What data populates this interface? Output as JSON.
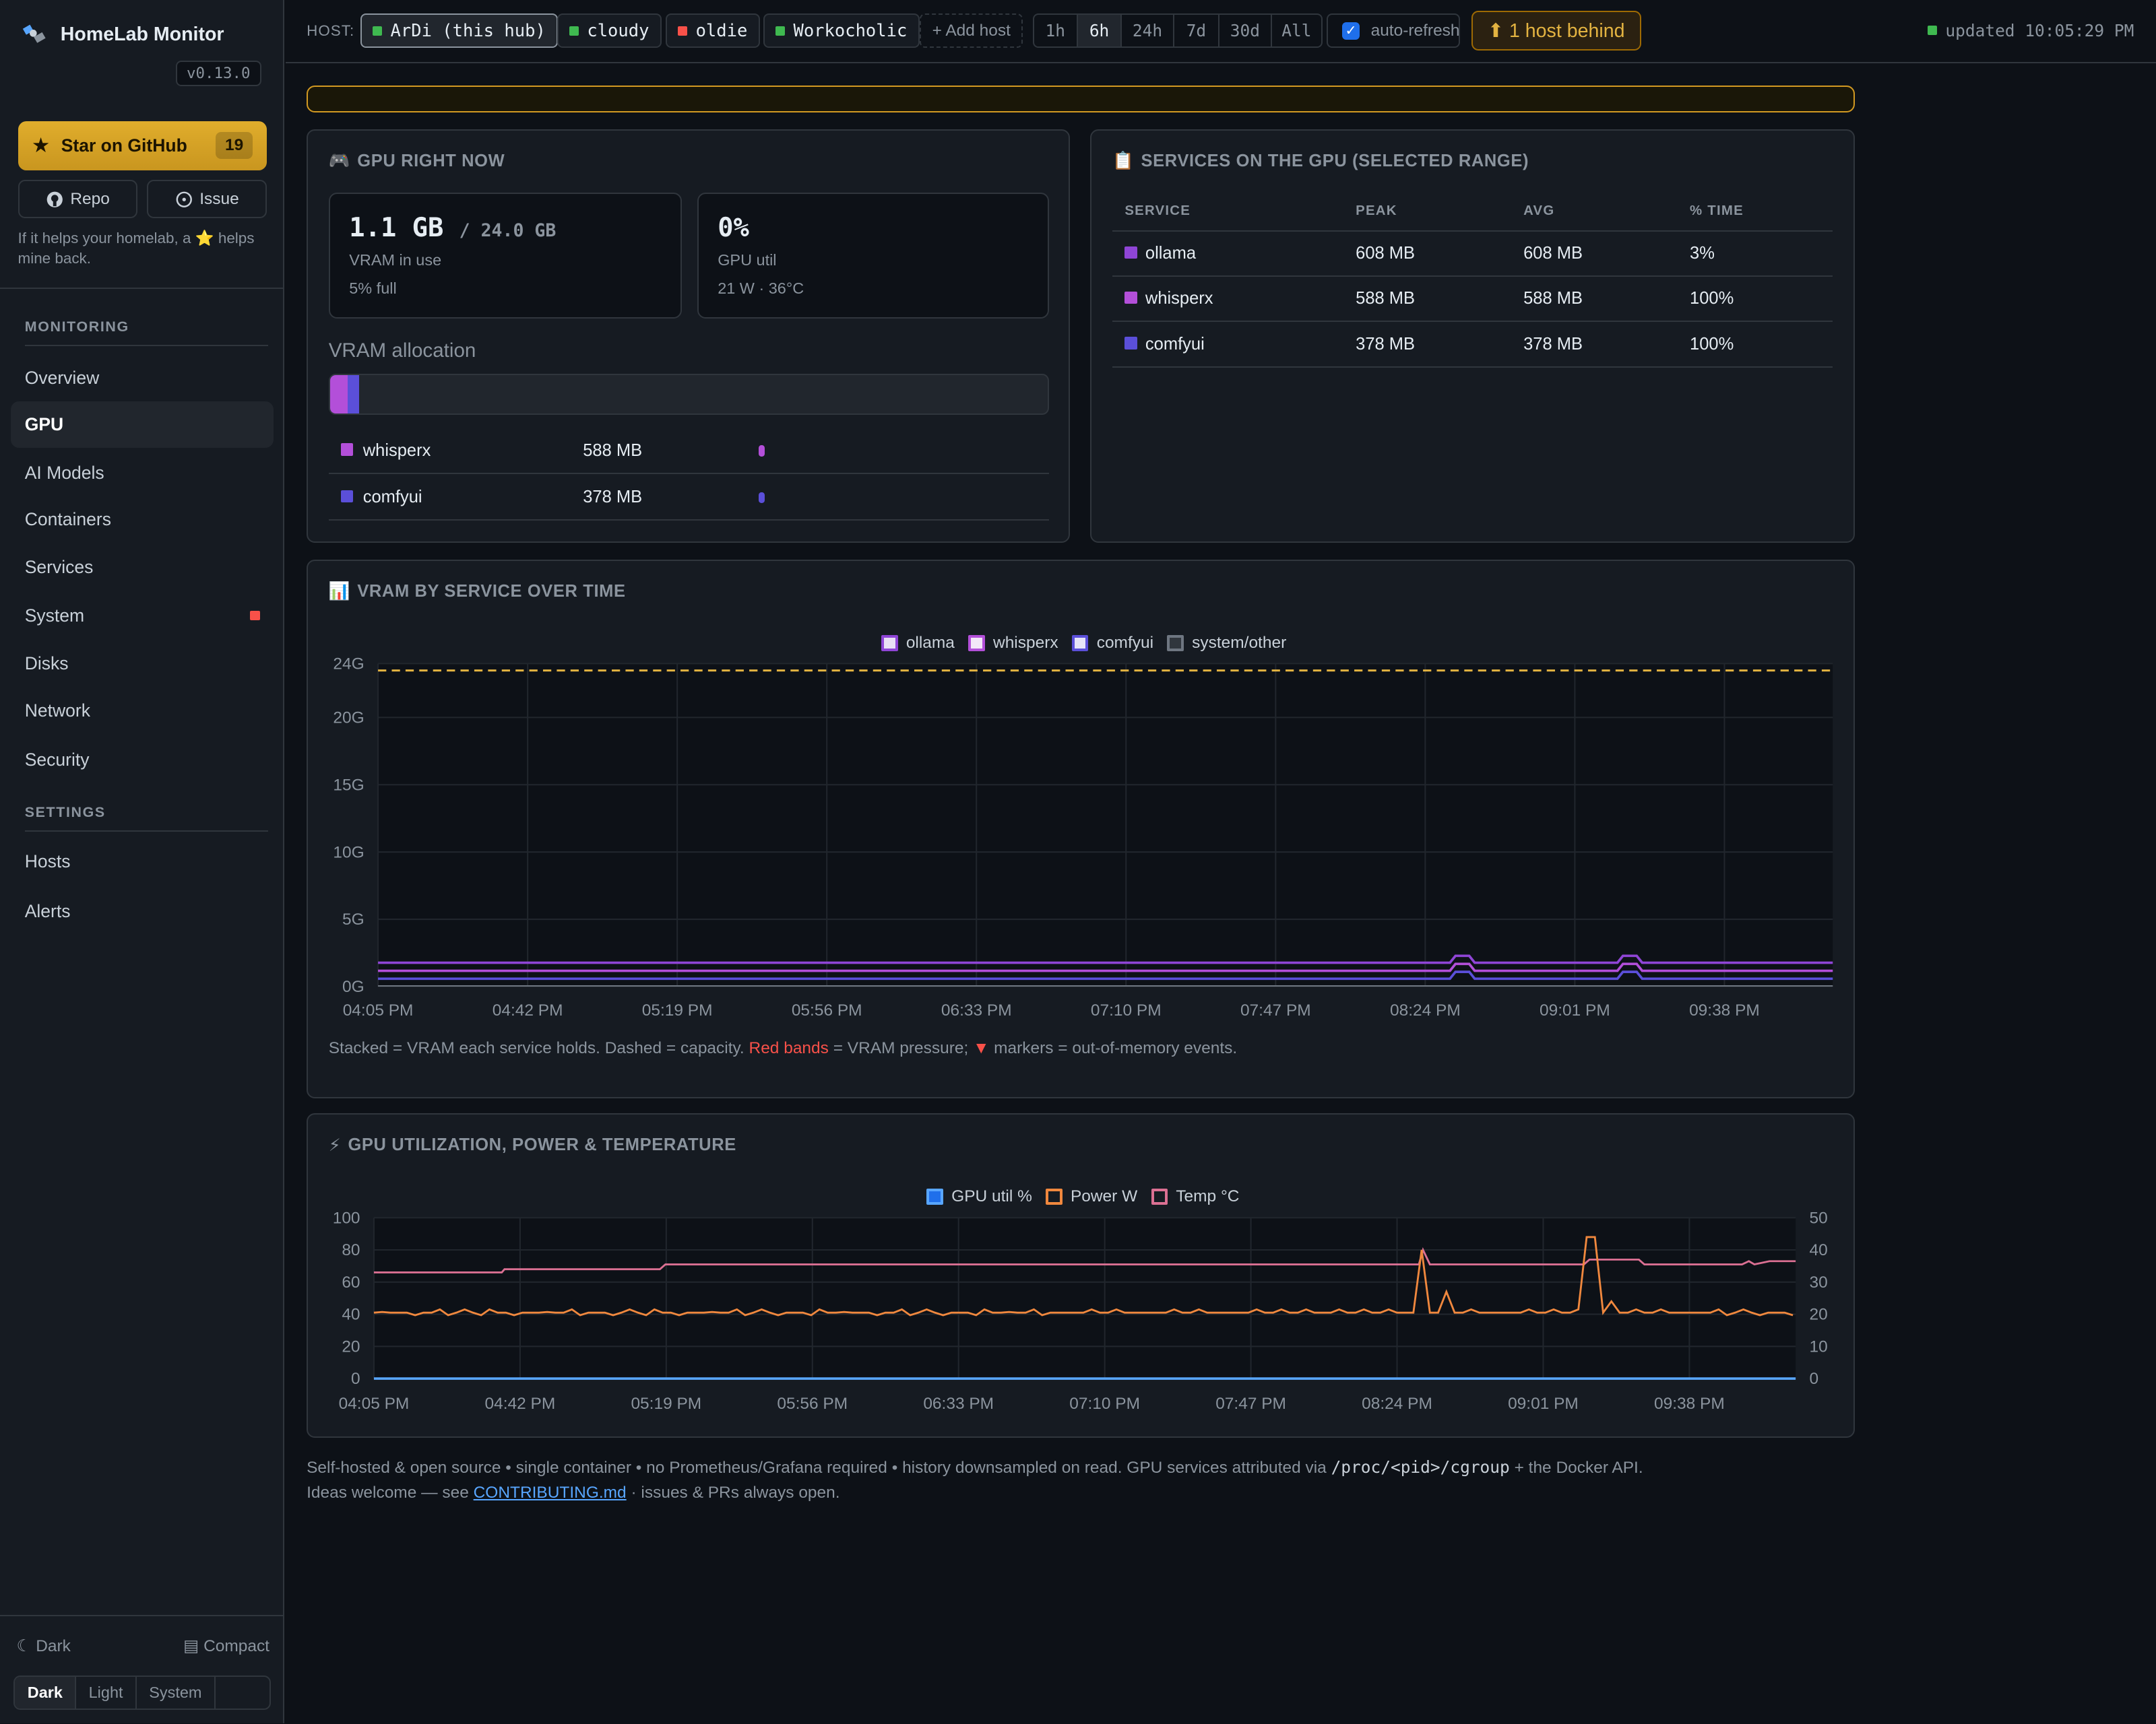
{
  "sidebar": {
    "brand": "HomeLab Monitor",
    "version": "v0.13.0",
    "star_label": "Star on GitHub",
    "star_count": "19",
    "repo_label": "Repo",
    "issue_label": "Issue",
    "help_text": "If it helps your homelab, a ⭐ helps mine back.",
    "sections": {
      "monitoring": "MONITORING",
      "settings": "SETTINGS"
    },
    "monitoring_items": [
      "Overview",
      "GPU",
      "AI Models",
      "Containers",
      "Services",
      "System",
      "Disks",
      "Network",
      "Security"
    ],
    "settings_items": [
      "Hosts",
      "Alerts"
    ],
    "theme_label": "Dark",
    "compact_label": "Compact",
    "theme_options": [
      "Dark",
      "Light",
      "System"
    ]
  },
  "topbar": {
    "host_label": "HOST:",
    "hosts": [
      {
        "name": "ArDi (this hub)",
        "status": "#3fb950"
      },
      {
        "name": "cloudy",
        "status": "#3fb950"
      },
      {
        "name": "oldie",
        "status": "#f85149"
      },
      {
        "name": "Workocholic",
        "status": "#3fb950"
      }
    ],
    "add_host": "+ Add host",
    "ranges": [
      "1h",
      "6h",
      "24h",
      "7d",
      "30d",
      "All"
    ],
    "selected_range": "6h",
    "auto_refresh": "auto-refresh",
    "behind": "⬆ 1 host behind",
    "updated": "updated 10:05:29 PM"
  },
  "gpu_now": {
    "title": "GPU RIGHT NOW",
    "vram_used": "1.1 GB",
    "vram_total": "/ 24.0 GB",
    "vram_label": "VRAM in use",
    "vram_pct": "5% full",
    "util": "0%",
    "util_label": "GPU util",
    "util_sub": "21 W · 36°C",
    "allocation_title": "VRAM allocation",
    "allocation": [
      {
        "name": "whisperx",
        "value": "588 MB",
        "color": "#b34fd9"
      },
      {
        "name": "comfyui",
        "value": "378 MB",
        "color": "#5b4fd9"
      }
    ]
  },
  "services": {
    "title": "SERVICES ON THE GPU (SELECTED RANGE)",
    "headers": [
      "SERVICE",
      "PEAK",
      "AVG",
      "% TIME"
    ],
    "rows": [
      {
        "name": "ollama",
        "peak": "608 MB",
        "avg": "608 MB",
        "time": "3%",
        "color": "#8f45d6"
      },
      {
        "name": "whisperx",
        "peak": "588 MB",
        "avg": "588 MB",
        "time": "100%",
        "color": "#b34fd9"
      },
      {
        "name": "comfyui",
        "peak": "378 MB",
        "avg": "378 MB",
        "time": "100%",
        "color": "#5b4fd9"
      }
    ]
  },
  "vram_chart": {
    "title": "VRAM BY SERVICE OVER TIME",
    "caption_a": "Stacked = VRAM each service holds. Dashed = capacity.",
    "caption_red": "Red bands",
    "caption_b": "= VRAM pressure;",
    "caption_marker": "▼",
    "caption_c": "markers = out-of-memory events."
  },
  "util_chart": {
    "title": "GPU UTILIZATION, POWER & TEMPERATURE"
  },
  "footer": {
    "line1_a": "Self-hosted & open source • single container • no Prometheus/Grafana required • history downsampled on read. GPU services attributed via",
    "line1_code": "/proc/<pid>/cgroup",
    "line1_b": "+ the Docker API.",
    "line2_a": "Ideas welcome — see",
    "line2_link": "CONTRIBUTING.md",
    "line2_b": "· issues & PRs always open."
  },
  "chart_data": [
    {
      "type": "area",
      "x": [
        "04:05 PM",
        "04:42 PM",
        "05:19 PM",
        "05:56 PM",
        "06:33 PM",
        "07:10 PM",
        "07:47 PM",
        "08:24 PM",
        "09:01 PM",
        "09:38 PM"
      ],
      "y_ticks": [
        "24G",
        "20G",
        "15G",
        "10G",
        "5G",
        "0G"
      ],
      "ylim": [
        0,
        24
      ],
      "capacity": 24,
      "series": [
        {
          "name": "ollama",
          "color": "#8f45d6",
          "baseline_gb": 0.6,
          "spikes_at": [
            "08:24 PM",
            "09:01 PM"
          ]
        },
        {
          "name": "whisperx",
          "color": "#b34fd9",
          "baseline_gb": 0.59
        },
        {
          "name": "comfyui",
          "color": "#5b4fd9",
          "baseline_gb": 0.38
        },
        {
          "name": "system/other",
          "color": "#6e7681",
          "baseline_gb": 0.0
        }
      ]
    },
    {
      "type": "line",
      "x": [
        "04:05 PM",
        "04:42 PM",
        "05:19 PM",
        "05:56 PM",
        "06:33 PM",
        "07:10 PM",
        "07:47 PM",
        "08:24 PM",
        "09:01 PM",
        "09:38 PM"
      ],
      "y_left_ticks": [
        "100",
        "80",
        "60",
        "40",
        "20",
        "0"
      ],
      "y_right_ticks": [
        "50",
        "40",
        "30",
        "20",
        "10",
        "0"
      ],
      "series": [
        {
          "name": "GPU util %",
          "color": "#58a6ff",
          "axis": "left",
          "typical": 0
        },
        {
          "name": "Power W",
          "color": "#f0883e",
          "axis": "right",
          "typical": 21,
          "peaks": [
            40,
            44
          ]
        },
        {
          "name": "Temp °C",
          "color": "#db7093",
          "axis": "right",
          "typical": 36
        }
      ]
    }
  ]
}
